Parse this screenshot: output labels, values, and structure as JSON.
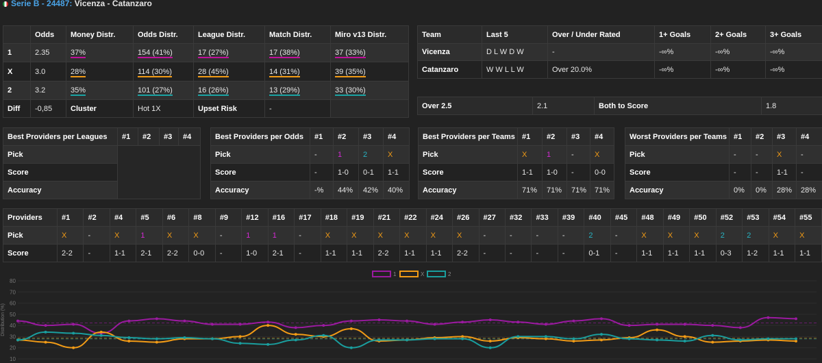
{
  "header": {
    "league": "Serie B - 24487:",
    "match": "Vicenza - Catanzaro"
  },
  "odds_table": {
    "headers": [
      "",
      "Odds",
      "Money Distr.",
      "Odds Distr.",
      "League Distr.",
      "Match Distr.",
      "Miro v13 Distr."
    ],
    "rows": [
      {
        "label": "1",
        "odds": "2.35",
        "money": "37%",
        "odds_distr": "154 (41%)",
        "league": "17 (27%)",
        "match": "17 (38%)",
        "miro": "37 (33%)"
      },
      {
        "label": "X",
        "odds": "3.0",
        "money": "28%",
        "odds_distr": "114 (30%)",
        "league": "28 (45%)",
        "match": "14 (31%)",
        "miro": "39 (35%)"
      },
      {
        "label": "2",
        "odds": "3.2",
        "money": "35%",
        "odds_distr": "101 (27%)",
        "league": "16 (26%)",
        "match": "13 (29%)",
        "miro": "33 (30%)"
      }
    ],
    "diff": {
      "label": "Diff",
      "value": "-0,85",
      "cluster_label": "Cluster",
      "cluster_value": "Hot 1X",
      "upset_label": "Upset Risk",
      "upset_value": "-"
    }
  },
  "team_table": {
    "headers": [
      "Team",
      "Last 5",
      "Over / Under Rated",
      "1+ Goals",
      "2+ Goals",
      "3+ Goals"
    ],
    "rows": [
      {
        "team": "Vicenza",
        "last5": "D L W D W",
        "rated": "-",
        "g1": "-∞%",
        "g2": "-∞%",
        "g3": "-∞%"
      },
      {
        "team": "Catanzaro",
        "last5": "W W L L W",
        "rated": "Over 20.0%",
        "g1": "-∞%",
        "g2": "-∞%",
        "g3": "-∞%"
      }
    ]
  },
  "over_table": {
    "over_label": "Over 2.5",
    "over_value": "2.1",
    "btts_label": "Both to Score",
    "btts_value": "1.8"
  },
  "provider_boxes": [
    {
      "title": "Best Providers per Leagues",
      "cols": [
        "#1",
        "#2",
        "#3",
        "#4"
      ],
      "pick": [],
      "score": [],
      "accuracy": []
    },
    {
      "title": "Best Providers per Odds",
      "cols": [
        "#1",
        "#2",
        "#3",
        "#4"
      ],
      "pick": [
        "-",
        "1",
        "2",
        "X"
      ],
      "score": [
        "-",
        "1-0",
        "0-1",
        "1-1"
      ],
      "accuracy": [
        "-%",
        "44%",
        "42%",
        "40%"
      ]
    },
    {
      "title": "Best Providers per Teams",
      "cols": [
        "#1",
        "#2",
        "#3",
        "#4"
      ],
      "pick": [
        "X",
        "1",
        "-",
        "X"
      ],
      "score": [
        "1-1",
        "1-0",
        "-",
        "0-0"
      ],
      "accuracy": [
        "71%",
        "71%",
        "71%",
        "71%"
      ]
    },
    {
      "title": "Worst Providers per Teams",
      "cols": [
        "#1",
        "#2",
        "#3",
        "#4"
      ],
      "pick": [
        "-",
        "-",
        "X",
        "-"
      ],
      "score": [
        "-",
        "-",
        "1-1",
        "-"
      ],
      "accuracy": [
        "0%",
        "0%",
        "28%",
        "28%"
      ]
    }
  ],
  "row_labels": {
    "pick": "Pick",
    "score": "Score",
    "accuracy": "Accuracy"
  },
  "providers": {
    "title": "Providers",
    "cols": [
      "#1",
      "#2",
      "#4",
      "#5",
      "#6",
      "#8",
      "#9",
      "#12",
      "#16",
      "#17",
      "#18",
      "#19",
      "#21",
      "#22",
      "#24",
      "#26",
      "#27",
      "#32",
      "#33",
      "#39",
      "#40",
      "#45",
      "#48",
      "#49",
      "#50",
      "#52",
      "#53",
      "#54",
      "#55"
    ],
    "pick": [
      "X",
      "-",
      "X",
      "1",
      "X",
      "X",
      "-",
      "1",
      "1",
      "-",
      "X",
      "X",
      "X",
      "X",
      "X",
      "X",
      "-",
      "-",
      "-",
      "-",
      "2",
      "-",
      "X",
      "X",
      "X",
      "2",
      "2",
      "X",
      "X"
    ],
    "score": [
      "2-2",
      "-",
      "1-1",
      "2-1",
      "2-2",
      "0-0",
      "-",
      "1-0",
      "2-1",
      "-",
      "1-1",
      "1-1",
      "2-2",
      "1-1",
      "1-1",
      "2-2",
      "-",
      "-",
      "-",
      "-",
      "0-1",
      "-",
      "1-1",
      "1-1",
      "1-1",
      "0-3",
      "1-2",
      "1-1",
      "1-1"
    ]
  },
  "chart_data": {
    "type": "line",
    "ylabel": "Distribution (%)",
    "ylim": [
      10,
      80
    ],
    "yticks": [
      "80",
      "70",
      "60",
      "50",
      "40",
      "30",
      "20",
      "10"
    ],
    "legend_placement": "top-center",
    "colors": {
      "1": "#9b1aa0",
      "X": "#f29b16",
      "2": "#1a9e9e"
    },
    "series": [
      {
        "name": "1",
        "values": [
          44,
          40,
          41,
          33,
          44,
          46,
          44,
          41,
          41,
          43,
          38,
          40,
          44,
          45,
          44,
          41,
          43,
          45,
          43,
          41,
          44,
          46,
          40,
          41,
          41,
          40,
          38,
          47,
          46
        ]
      },
      {
        "name": "X",
        "values": [
          27,
          25,
          20,
          34,
          26,
          25,
          28,
          28,
          30,
          40,
          32,
          30,
          37,
          26,
          27,
          29,
          30,
          26,
          29,
          28,
          26,
          27,
          29,
          36,
          30,
          25,
          26,
          27,
          26
        ]
      },
      {
        "name": "2",
        "values": [
          27,
          34,
          33,
          31,
          29,
          28,
          29,
          28,
          24,
          23,
          27,
          31,
          20,
          27,
          27,
          28,
          28,
          20,
          30,
          30,
          28,
          32,
          28,
          27,
          26,
          31,
          27,
          28,
          28
        ]
      }
    ]
  }
}
